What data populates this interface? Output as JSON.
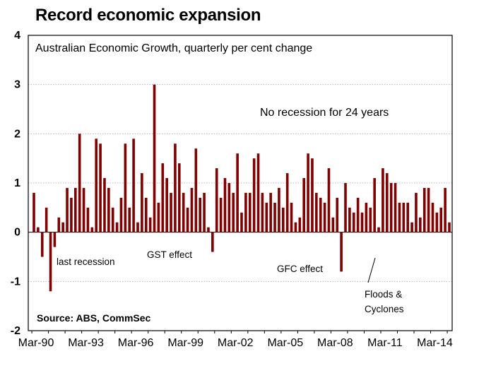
{
  "chart_data": {
    "type": "bar",
    "title": "Record economic expansion",
    "subtitle": "Australian Economic Growth, quarterly per cent change",
    "source": "Source: ABS, CommSec",
    "ylim": [
      -2,
      4
    ],
    "y_ticks": [
      "-2",
      "-1",
      "0",
      "1",
      "2",
      "3",
      "4"
    ],
    "x_tick_labels": [
      "Mar-90",
      "Mar-93",
      "Mar-96",
      "Mar-99",
      "Mar-02",
      "Mar-05",
      "Mar-08",
      "Mar-11",
      "Mar-14"
    ],
    "grid": "horizontal dotted",
    "bar_color": "#800000",
    "annotations": {
      "recession": "last recession",
      "gst": "GST effect",
      "gfc": "GFC effect",
      "floods_line1": "Floods &",
      "floods_line2": "Cyclones",
      "no_recession": "No recession for 24 years"
    },
    "start_quarter": "Mar-90",
    "values": [
      0.8,
      0.1,
      -0.5,
      0.5,
      -1.2,
      -0.3,
      0.3,
      0.2,
      0.9,
      0.7,
      0.9,
      2.0,
      0.9,
      0.5,
      0.1,
      1.9,
      1.8,
      1.1,
      0.9,
      0.5,
      0.2,
      0.7,
      1.8,
      0.5,
      1.9,
      0.2,
      1.2,
      0.7,
      0.3,
      3.0,
      0.6,
      1.4,
      1.1,
      0.8,
      1.8,
      1.4,
      0.8,
      0.5,
      0.9,
      1.7,
      0.7,
      0.8,
      0.1,
      -0.4,
      1.3,
      0.7,
      1.1,
      1.0,
      0.8,
      1.6,
      0.4,
      0.8,
      0.8,
      1.5,
      1.6,
      0.8,
      0.6,
      0.8,
      0.6,
      0.9,
      0.5,
      1.2,
      0.6,
      0.2,
      0.3,
      1.1,
      1.6,
      1.5,
      0.8,
      0.7,
      0.6,
      1.3,
      0.3,
      0.7,
      -0.8,
      1.0,
      0.5,
      0.4,
      0.7,
      0.4,
      0.6,
      0.5,
      1.1,
      0.1,
      1.3,
      1.2,
      1.0,
      1.0,
      0.6,
      0.6,
      0.6,
      0.2,
      0.8,
      0.3,
      0.9,
      0.9,
      0.6,
      0.4,
      0.5,
      0.9,
      0.2
    ]
  }
}
